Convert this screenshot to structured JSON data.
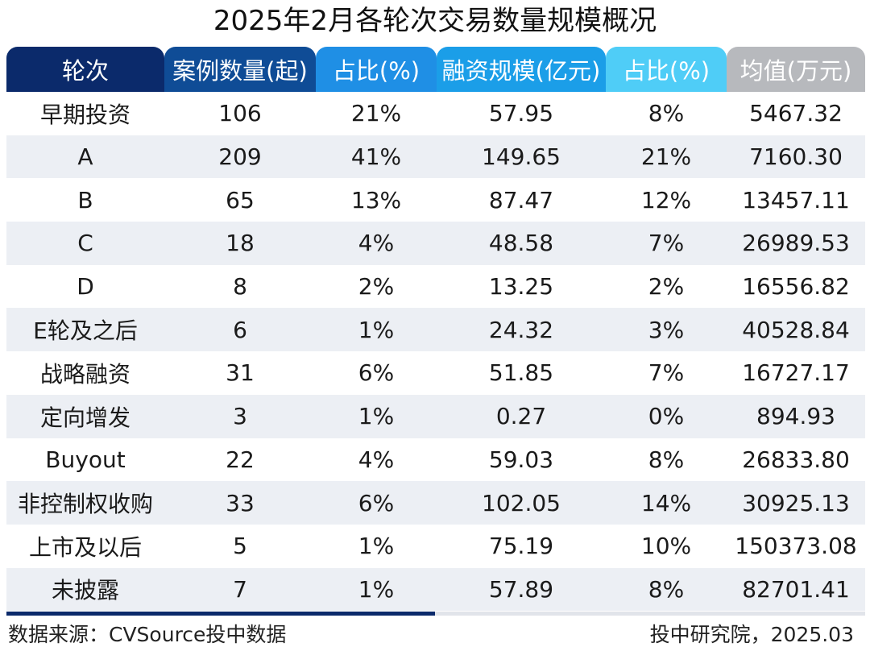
{
  "chart_data": {
    "type": "table",
    "title": "2025年2月各轮次交易数量规模概况",
    "columns": [
      {
        "label": "轮次",
        "color": "#0b2a6b"
      },
      {
        "label": "案例数量(起)",
        "color": "#0f4c96"
      },
      {
        "label": "占比(%)",
        "color": "#1f8fe5"
      },
      {
        "label": "融资规模(亿元)",
        "color": "#1b9ee8"
      },
      {
        "label": "占比(%)",
        "color": "#4fcdf7"
      },
      {
        "label": "均值(万元)",
        "color": "#b7b9bd"
      }
    ],
    "rows": [
      [
        "早期投资",
        "106",
        "21%",
        "57.95",
        "8%",
        "5467.32"
      ],
      [
        "A",
        "209",
        "41%",
        "149.65",
        "21%",
        "7160.30"
      ],
      [
        "B",
        "65",
        "13%",
        "87.47",
        "12%",
        "13457.11"
      ],
      [
        "C",
        "18",
        "4%",
        "48.58",
        "7%",
        "26989.53"
      ],
      [
        "D",
        "8",
        "2%",
        "13.25",
        "2%",
        "16556.82"
      ],
      [
        "E轮及之后",
        "6",
        "1%",
        "24.32",
        "3%",
        "40528.84"
      ],
      [
        "战略融资",
        "31",
        "6%",
        "51.85",
        "7%",
        "16727.17"
      ],
      [
        "定向增发",
        "3",
        "1%",
        "0.27",
        "0%",
        "894.93"
      ],
      [
        "Buyout",
        "22",
        "4%",
        "59.03",
        "8%",
        "26833.80"
      ],
      [
        "非控制权收购",
        "33",
        "6%",
        "102.05",
        "14%",
        "30925.13"
      ],
      [
        "上市及以后",
        "5",
        "1%",
        "75.19",
        "10%",
        "150373.08"
      ],
      [
        "未披露",
        "7",
        "1%",
        "57.89",
        "8%",
        "82701.41"
      ]
    ]
  },
  "footer": {
    "source": "数据来源：CVSource投中数据",
    "credit": "投中研究院，2025.03"
  },
  "colors": {
    "alt_row": "#eceff4",
    "bottom_bar_dark": "#0b2a6b",
    "bottom_bar_light": "#e1e4ea"
  }
}
